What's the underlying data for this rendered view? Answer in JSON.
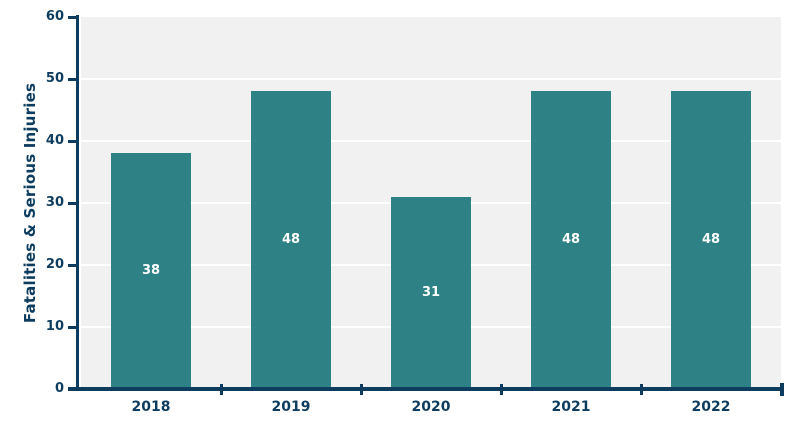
{
  "chart_data": {
    "type": "bar",
    "categories": [
      "2018",
      "2019",
      "2020",
      "2021",
      "2022"
    ],
    "values": [
      38,
      48,
      31,
      48,
      48
    ],
    "bar_labels": [
      "38",
      "48",
      "31",
      "48",
      "48"
    ],
    "title": "",
    "xlabel": "",
    "ylabel": "Fatalities & Serious Injuries",
    "ylim": [
      0,
      60
    ],
    "yticks": [
      0,
      10,
      20,
      30,
      40,
      50,
      60
    ],
    "grid": true,
    "legend_position": "none",
    "colors": {
      "bar": "#2e8184",
      "axis": "#0e3c5e",
      "tick_label_text": "#0e3c5e",
      "bar_label_text": "#ffffff",
      "plot_background": "#f1f1f1",
      "gridline": "#ffffff",
      "background": "#ffffff"
    }
  }
}
